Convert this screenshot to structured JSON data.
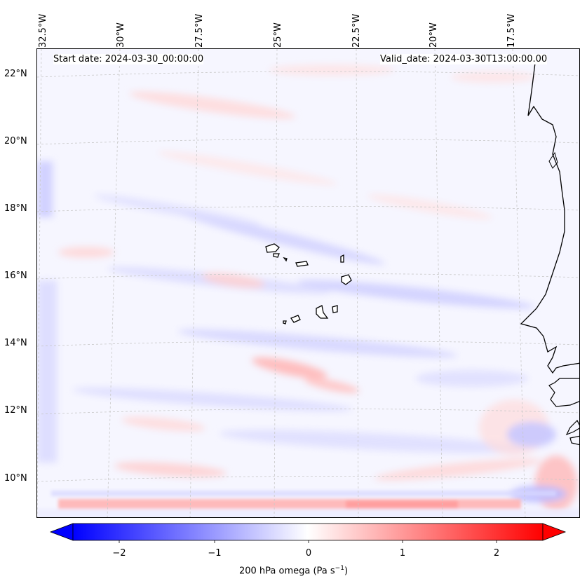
{
  "map": {
    "start_label": "Start date: 2024-03-30_00:00:00",
    "valid_label": "Valid_date: 2024-03-30T13:00:00.00",
    "lon_labels": [
      "32.5°W",
      "30°W",
      "27.5°W",
      "25°W",
      "22.5°W",
      "20°W",
      "17.5°W"
    ],
    "lat_labels": [
      "22°N",
      "20°N",
      "18°N",
      "16°N",
      "14°N",
      "12°N",
      "10°N"
    ],
    "colors": {
      "negative": "#0000ff",
      "positive": "#ff0000",
      "neutral": "#ffffff",
      "coast": "#000000",
      "grid": "#c8c8c8"
    }
  },
  "colorbar": {
    "label": "200 hPa omega (Pa s",
    "label_sup": "−1",
    "label_close": ")",
    "ticks": [
      "−2",
      "−1",
      "0",
      "1",
      "2"
    ],
    "range": [
      -2.6,
      2.6
    ]
  }
}
